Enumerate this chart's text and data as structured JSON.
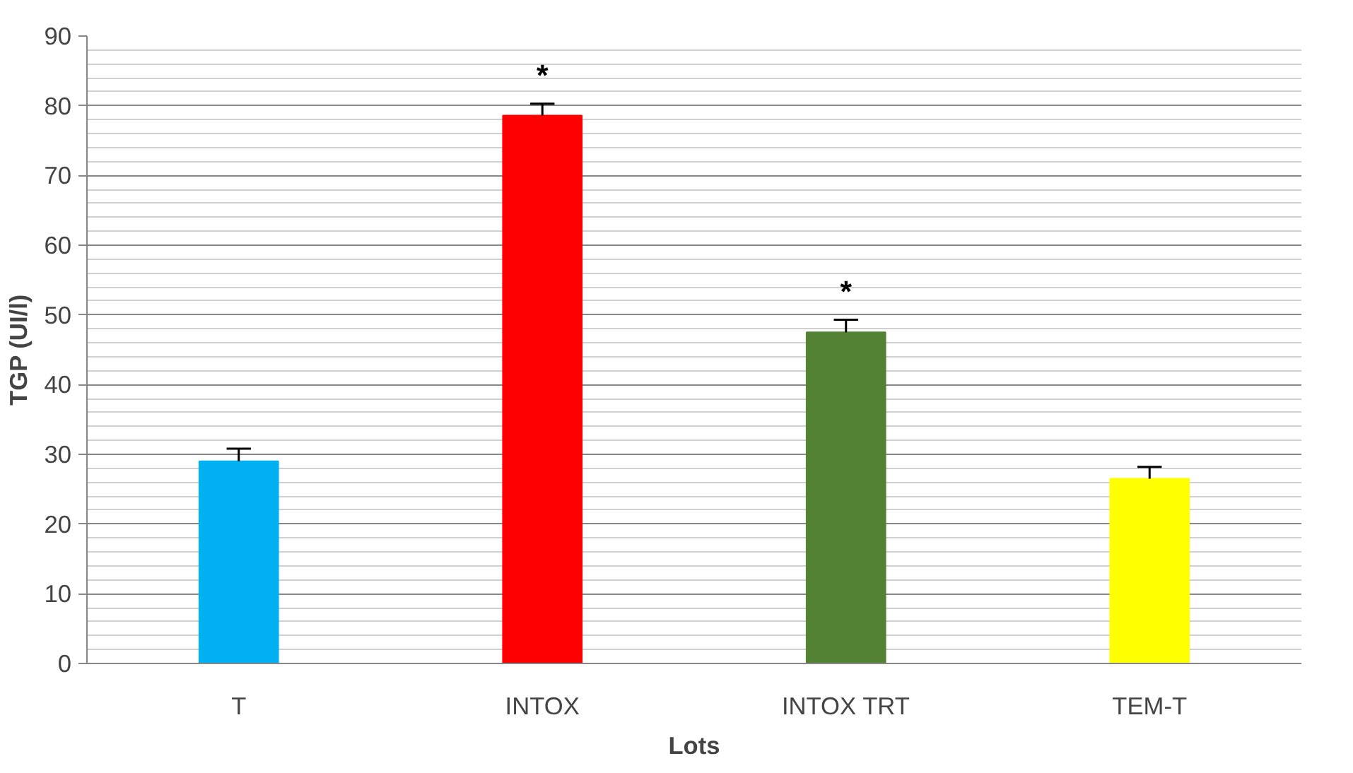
{
  "chart_data": {
    "type": "bar",
    "xlabel": "Lots",
    "ylabel": "TGP (UI/l)",
    "categories": [
      "T",
      "INTOX",
      "INTOX TRT",
      "TEM-T"
    ],
    "values": [
      29.0,
      78.6,
      47.5,
      26.5
    ],
    "colors": [
      "#00b0f0",
      "#ff0000",
      "#548235",
      "#ffff00"
    ],
    "errors": [
      [
        29.0,
        30.8
      ],
      [
        78.6,
        80.3
      ],
      [
        47.5,
        49.3
      ],
      [
        26.5,
        28.2
      ]
    ],
    "annotations": [
      {
        "text": "*",
        "x": "INTOX",
        "y": 80.3
      },
      {
        "text": "*",
        "x": "INTOX TRT",
        "y": 49.3
      }
    ],
    "ylim": [
      0,
      90
    ],
    "yticks": [
      0,
      10,
      20,
      30,
      40,
      50,
      60,
      70,
      80,
      90
    ],
    "grid": "y"
  }
}
